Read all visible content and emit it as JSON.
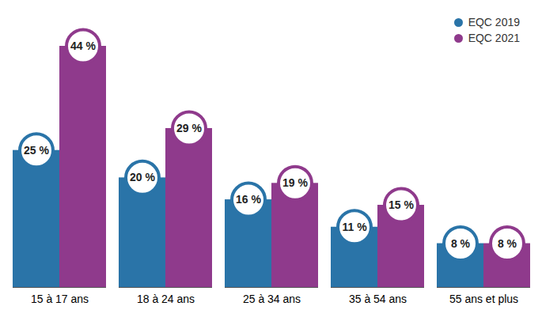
{
  "chart_data": {
    "type": "bar",
    "categories": [
      "15 à 17 ans",
      "18 à 24 ans",
      "25 à 34 ans",
      "35 à 54 ans",
      "55 ans et plus"
    ],
    "series": [
      {
        "name": "EQC 2019",
        "color": "#2a74a8",
        "values": [
          25,
          20,
          16,
          11,
          8
        ],
        "value_labels": [
          "25 %",
          "20 %",
          "16 %",
          "11 %",
          "8 %"
        ]
      },
      {
        "name": "EQC 2021",
        "color": "#8f3a8c",
        "values": [
          44,
          29,
          19,
          15,
          8
        ],
        "value_labels": [
          "44 %",
          "29 %",
          "19 %",
          "15 %",
          "8 %"
        ]
      }
    ],
    "ylim": [
      0,
      44
    ],
    "data_labels": true,
    "tick_labels": "x",
    "legend": "top-right",
    "grid": false
  }
}
